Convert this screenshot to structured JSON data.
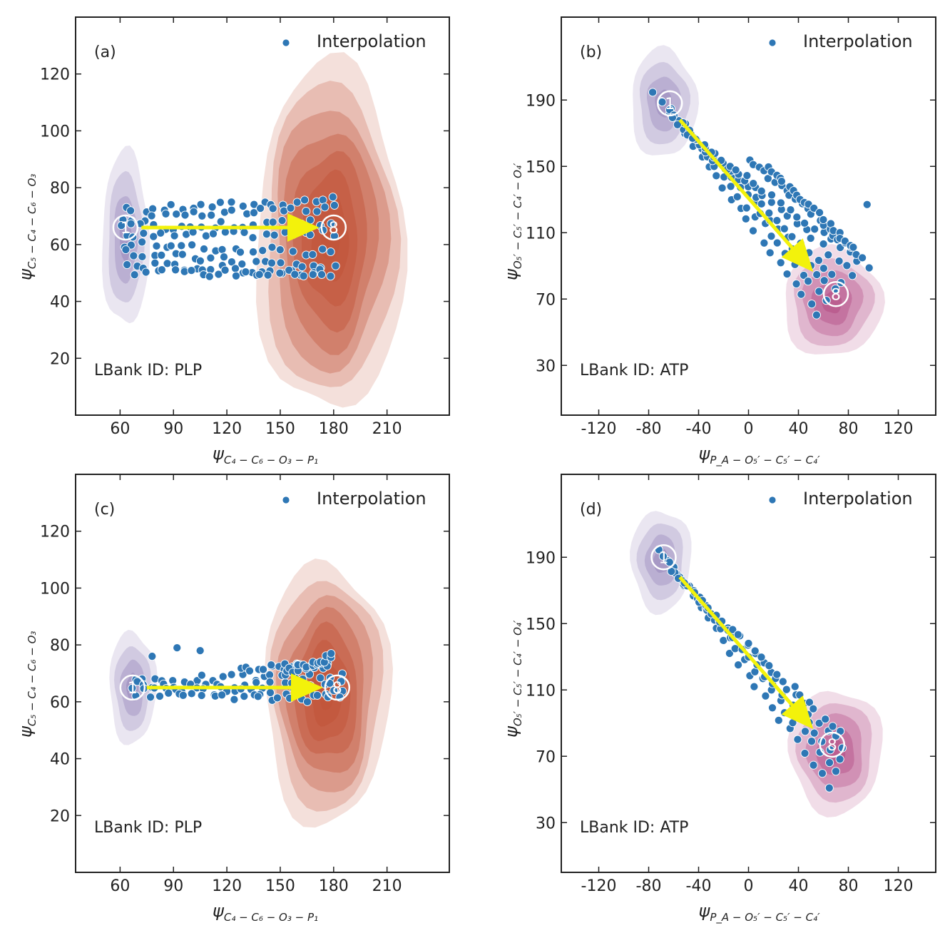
{
  "chart_data": [
    {
      "type": "scatter",
      "panel": "(a)",
      "legend": "Interpolation",
      "annotation": "LBank ID: PLP",
      "xlabel": "ψ_{C4−C6−O3−P1}",
      "xlabel_main": "ψ",
      "xlabel_sub": "C₄ − C₆ − O₃ − P₁",
      "ylabel": "ψ_{C5−C4−C6−O3}",
      "ylabel_main": "ψ",
      "ylabel_sub": "C₅ − C₄ − C₆ − O₃",
      "xlim": [
        35,
        245
      ],
      "ylim": [
        0,
        140
      ],
      "xticks": [
        60,
        90,
        120,
        150,
        180,
        210
      ],
      "yticks": [
        20,
        40,
        60,
        80,
        100,
        120
      ],
      "start_label": "1",
      "end_label": "8",
      "start_point": [
        63,
        66
      ],
      "end_point": [
        180,
        66
      ],
      "arrow": {
        "from": [
          72,
          66
        ],
        "to": [
          170,
          66
        ]
      },
      "sources": [
        {
          "name": "start-state",
          "color": "#8877b3",
          "center": [
            63,
            62
          ],
          "spread": [
            6,
            14
          ],
          "levels": 4
        },
        {
          "name": "end-state",
          "color": "#c2553a",
          "center": [
            178,
            62
          ],
          "spread": [
            19,
            28
          ],
          "levels": 8
        }
      ],
      "series": [
        {
          "name": "Interpolation",
          "color": "#2e77b5",
          "paths": [
            {
              "x": [
                62,
                180
              ],
              "y": [
                72,
                76
              ]
            },
            {
              "x": [
                62,
                180
              ],
              "y": [
                69,
                73
              ]
            },
            {
              "x": [
                62,
                180
              ],
              "y": [
                66,
                68
              ]
            },
            {
              "x": [
                62,
                180
              ],
              "y": [
                63,
                64
              ]
            },
            {
              "x": [
                62,
                180
              ],
              "y": [
                60,
                57
              ]
            },
            {
              "x": [
                62,
                180
              ],
              "y": [
                57,
                52
              ]
            },
            {
              "x": [
                64,
                178
              ],
              "y": [
                53,
                50
              ]
            },
            {
              "x": [
                70,
                175
              ],
              "y": [
                50,
                50
              ]
            }
          ]
        }
      ]
    },
    {
      "type": "scatter",
      "panel": "(b)",
      "legend": "Interpolation",
      "annotation": "LBank ID: ATP",
      "xlabel": "ψ_{PA−O5′−C5′−C4′}",
      "xlabel_main": "ψ",
      "xlabel_sub": "P_A − O₅′ − C₅′ − C₄′",
      "ylabel": "ψ_{O5′−C5′−C4′−O4′}",
      "ylabel_main": "ψ",
      "ylabel_sub": "O₅′ − C₅′ − C₄′ − O₄′",
      "xlim": [
        -150,
        150
      ],
      "ylim": [
        0,
        240
      ],
      "xticks": [
        -120,
        -80,
        -40,
        0,
        40,
        80,
        120
      ],
      "yticks": [
        30,
        70,
        110,
        150,
        190
      ],
      "start_label": "1",
      "end_label": "8",
      "start_point": [
        -63,
        188
      ],
      "end_point": [
        70,
        73
      ],
      "arrow": {
        "from": [
          -55,
          178
        ],
        "to": [
          50,
          88
        ]
      },
      "sources": [
        {
          "name": "start-state",
          "color": "#8877b3",
          "center": [
            -68,
            188
          ],
          "spread": [
            12,
            15
          ],
          "levels": 4
        },
        {
          "name": "end-state",
          "color": "#b0457f",
          "center": [
            67,
            68
          ],
          "spread": [
            18,
            15
          ],
          "levels": 5
        }
      ],
      "series": [
        {
          "name": "Interpolation",
          "color": "#2e77b5",
          "paths": [
            {
              "x": [
                -75,
                55
              ],
              "y": [
                195,
                60
              ]
            },
            {
              "x": [
                -70,
                62
              ],
              "y": [
                190,
                68
              ]
            },
            {
              "x": [
                -65,
                68
              ],
              "y": [
                185,
                75
              ]
            },
            {
              "x": [
                -60,
                75
              ],
              "y": [
                180,
                80
              ]
            },
            {
              "x": [
                -55,
                85
              ],
              "y": [
                175,
                85
              ]
            },
            {
              "x": [
                -50,
                95
              ],
              "y": [
                170,
                90
              ]
            },
            {
              "x": [
                0,
                90
              ],
              "y": [
                155,
                95
              ]
            },
            {
              "x": [
                15,
                85
              ],
              "y": [
                150,
                100
              ]
            }
          ]
        }
      ],
      "outliers": [
        {
          "x": 95,
          "y": 127
        }
      ]
    },
    {
      "type": "scatter",
      "panel": "(c)",
      "legend": "Interpolation",
      "annotation": "LBank ID: PLP",
      "xlabel": "ψ_{C4−C6−O3−P1}",
      "xlabel_main": "ψ",
      "xlabel_sub": "C₄ − C₆ − O₃ − P₁",
      "ylabel": "ψ_{C5−C4−C6−O3}",
      "ylabel_main": "ψ",
      "ylabel_sub": "C₅ − C₄ − C₆ − O₃",
      "xlim": [
        35,
        245
      ],
      "ylim": [
        0,
        140
      ],
      "xticks": [
        60,
        90,
        120,
        150,
        180,
        210
      ],
      "yticks": [
        20,
        40,
        60,
        80,
        100,
        120
      ],
      "start_label": "1",
      "end_label": "8",
      "start_point": [
        67,
        65
      ],
      "end_point": [
        182,
        65
      ],
      "arrow": {
        "from": [
          75,
          65
        ],
        "to": [
          172,
          65
        ]
      },
      "sources": [
        {
          "name": "start-state",
          "color": "#8877b3",
          "center": [
            67,
            65
          ],
          "spread": [
            6,
            9
          ],
          "levels": 4
        },
        {
          "name": "end-state",
          "color": "#c2553a",
          "center": [
            176,
            63
          ],
          "spread": [
            16,
            21
          ],
          "levels": 8
        }
      ],
      "series": [
        {
          "name": "Interpolation",
          "color": "#2e77b5",
          "paths": [
            {
              "x": [
                68,
                185
              ],
              "y": [
                68,
                69
              ]
            },
            {
              "x": [
                68,
                185
              ],
              "y": [
                66,
                66
              ]
            },
            {
              "x": [
                68,
                185
              ],
              "y": [
                64,
                63
              ]
            },
            {
              "x": [
                70,
                182
              ],
              "y": [
                62,
                61
              ]
            },
            {
              "x": [
                130,
                178
              ],
              "y": [
                72,
                73
              ]
            },
            {
              "x": [
                150,
                180
              ],
              "y": [
                70,
                76
              ]
            }
          ]
        }
      ],
      "outliers": [
        {
          "x": 92,
          "y": 79
        },
        {
          "x": 105,
          "y": 78
        },
        {
          "x": 78,
          "y": 76
        }
      ]
    },
    {
      "type": "scatter",
      "panel": "(d)",
      "legend": "Interpolation",
      "annotation": "LBank ID: ATP",
      "xlabel": "ψ_{PA−O5′−C5′−C4′}",
      "xlabel_main": "ψ",
      "xlabel_sub": "P_A − O₅′ − C₅′ − C₄′",
      "ylabel": "ψ_{O5′−C5′−C4′−O4′}",
      "ylabel_main": "ψ",
      "ylabel_sub": "O₅′ − C₅′ − C₄′ − O₄′",
      "xlim": [
        -150,
        150
      ],
      "ylim": [
        0,
        240
      ],
      "xticks": [
        -120,
        -80,
        -40,
        0,
        40,
        80,
        120
      ],
      "yticks": [
        30,
        70,
        110,
        150,
        190
      ],
      "start_label": "1",
      "end_label": "8",
      "start_point": [
        -68,
        190
      ],
      "end_point": [
        67,
        77
      ],
      "arrow": {
        "from": [
          -55,
          178
        ],
        "to": [
          50,
          88
        ]
      },
      "sources": [
        {
          "name": "start-state",
          "color": "#8877b3",
          "center": [
            -70,
            188
          ],
          "spread": [
            11,
            14
          ],
          "levels": 4
        },
        {
          "name": "end-state",
          "color": "#b0457f",
          "center": [
            70,
            73
          ],
          "spread": [
            17,
            17
          ],
          "levels": 5
        }
      ],
      "series": [
        {
          "name": "Interpolation",
          "color": "#2e77b5",
          "paths": [
            {
              "x": [
                -72,
                65
              ],
              "y": [
                194,
                52
              ]
            },
            {
              "x": [
                -68,
                70
              ],
              "y": [
                190,
                60
              ]
            },
            {
              "x": [
                -64,
                73
              ],
              "y": [
                186,
                68
              ]
            },
            {
              "x": [
                -60,
                75
              ],
              "y": [
                182,
                76
              ]
            },
            {
              "x": [
                -56,
                72
              ],
              "y": [
                178,
                84
              ]
            }
          ]
        }
      ]
    }
  ]
}
